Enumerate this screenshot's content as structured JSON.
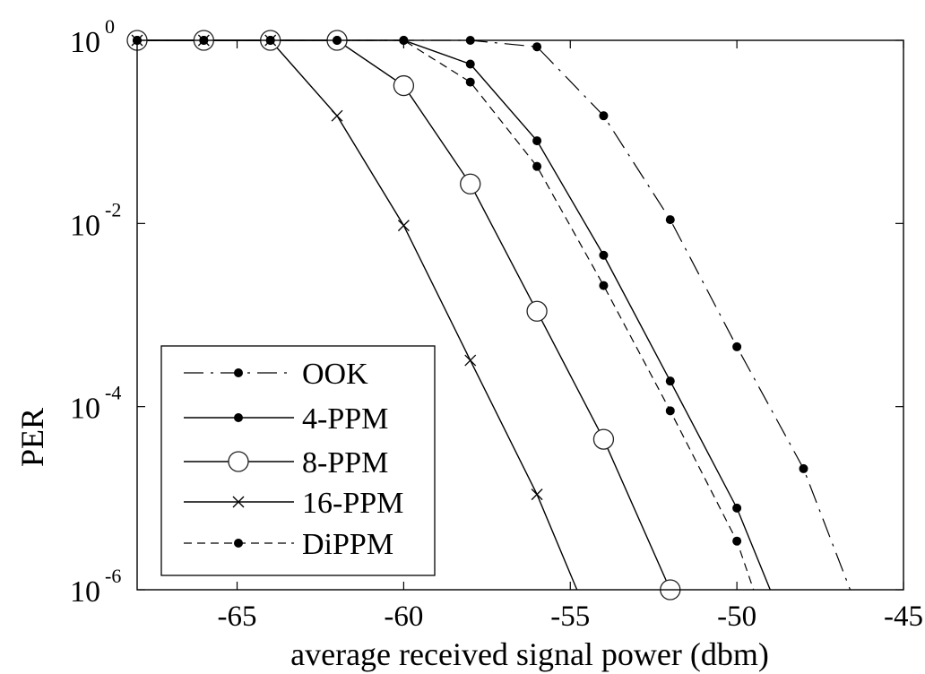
{
  "chart_data": {
    "type": "line",
    "title": "",
    "xlabel": "average received signal power (dbm)",
    "ylabel": "PER",
    "xlim": [
      -68,
      -45
    ],
    "ylim": [
      1e-06,
      1
    ],
    "yscale": "log",
    "x_ticks": [
      -65,
      -60,
      -55,
      -50,
      -45
    ],
    "x_tick_labels": [
      "-65",
      "-60",
      "-55",
      "-50",
      "-45"
    ],
    "y_ticks": [
      1e-06,
      0.0001,
      0.01,
      1
    ],
    "y_tick_labels": [
      {
        "base": "10",
        "exp": "-6"
      },
      {
        "base": "10",
        "exp": "-4"
      },
      {
        "base": "10",
        "exp": "-2"
      },
      {
        "base": "10",
        "exp": "0"
      }
    ],
    "grid": false,
    "legend_position": "bottom-left",
    "series": [
      {
        "name": "OOK",
        "line_style": "dashdot",
        "marker": "dot",
        "color": "#000000",
        "x": [
          -68,
          -66,
          -64,
          -62,
          -60,
          -58,
          -56,
          -54,
          -52,
          -50,
          -48,
          -46.6
        ],
        "y": [
          1,
          1,
          1,
          1,
          1,
          1,
          0.85,
          0.15,
          0.011,
          0.00045,
          2.1e-05,
          1e-06
        ],
        "markers_x": [
          -68,
          -66,
          -64,
          -62,
          -60,
          -58,
          -56,
          -54,
          -52,
          -50,
          -48
        ]
      },
      {
        "name": "4-PPM",
        "line_style": "solid",
        "marker": "dot",
        "color": "#000000",
        "x": [
          -68,
          -66,
          -64,
          -62,
          -60,
          -58,
          -56,
          -54,
          -52,
          -50,
          -49
        ],
        "y": [
          1,
          1,
          1,
          1,
          1,
          0.55,
          0.08,
          0.0045,
          0.00019,
          7.8e-06,
          1e-06
        ],
        "markers_x": [
          -68,
          -66,
          -64,
          -62,
          -60,
          -58,
          -56,
          -54,
          -52,
          -50
        ]
      },
      {
        "name": "8-PPM",
        "line_style": "solid",
        "marker": "circle",
        "color": "#000000",
        "x": [
          -68,
          -66,
          -64,
          -62,
          -60,
          -58,
          -56,
          -54,
          -52
        ],
        "y": [
          1,
          1,
          1,
          1,
          0.32,
          0.027,
          0.0011,
          4.4e-05,
          1e-06
        ],
        "markers_x": [
          -68,
          -66,
          -64,
          -62,
          -60,
          -58,
          -56,
          -54,
          -52
        ]
      },
      {
        "name": "16-PPM",
        "line_style": "solid",
        "marker": "x",
        "color": "#000000",
        "x": [
          -68,
          -66,
          -64,
          -62,
          -60,
          -58,
          -56,
          -54.8
        ],
        "y": [
          1,
          1,
          1,
          0.15,
          0.0095,
          0.00032,
          1.1e-05,
          1e-06
        ],
        "markers_x": [
          -68,
          -66,
          -64,
          -62,
          -60,
          -58,
          -56
        ]
      },
      {
        "name": "DiPPM",
        "line_style": "dashed",
        "marker": "dot",
        "color": "#000000",
        "x": [
          -68,
          -66,
          -64,
          -62,
          -60,
          -58,
          -56,
          -54,
          -52,
          -50,
          -49.5
        ],
        "y": [
          1,
          1,
          1,
          1,
          1,
          0.35,
          0.042,
          0.0021,
          9e-05,
          3.4e-06,
          1e-06
        ],
        "markers_x": [
          -68,
          -66,
          -64,
          -62,
          -60,
          -58,
          -56,
          -54,
          -52,
          -50
        ]
      }
    ]
  }
}
